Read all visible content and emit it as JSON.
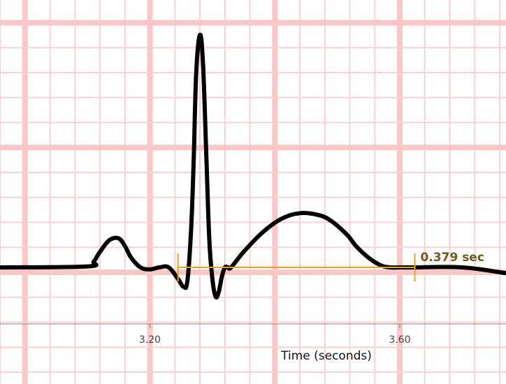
{
  "chart_data": {
    "type": "line",
    "xlabel": "Time (seconds)",
    "ticks": [
      {
        "value": 3.2,
        "label": "3.20"
      },
      {
        "value": 3.6,
        "label": "3.60"
      }
    ],
    "xlim": [
      2.96,
      3.77
    ],
    "ylim": [
      -0.25,
      1.72
    ],
    "grid": true,
    "series": [
      {
        "type": "ecg-trace",
        "x": [
          2.96,
          3.1,
          3.11,
          3.12,
          3.135,
          3.15,
          3.16,
          3.17,
          3.185,
          3.2,
          3.215,
          3.23,
          3.245,
          3.254,
          3.26,
          3.266,
          3.27,
          3.274,
          3.28,
          3.285,
          3.29,
          3.295,
          3.3,
          3.305,
          3.31,
          3.315,
          3.32,
          3.325,
          3.33,
          3.35,
          3.38,
          3.41,
          3.44,
          3.47,
          3.49,
          3.515,
          3.53,
          3.55,
          3.57,
          3.585,
          3.6,
          3.62,
          3.7,
          3.77
        ],
        "y": [
          0.0,
          0.005,
          0.03,
          0.08,
          0.14,
          0.15,
          0.11,
          0.05,
          0.0,
          -0.01,
          0.0,
          0.0,
          -0.06,
          -0.1,
          -0.07,
          0.2,
          0.55,
          1.0,
          1.2,
          1.05,
          0.6,
          0.15,
          -0.06,
          -0.15,
          -0.13,
          -0.05,
          0.0,
          0.0,
          0.0,
          0.08,
          0.18,
          0.25,
          0.28,
          0.27,
          0.24,
          0.17,
          0.11,
          0.05,
          0.01,
          0.0,
          0.0,
          0.0,
          0.0,
          -0.03
        ]
      }
    ],
    "measurement": {
      "x_start": 3.245,
      "x_end": 3.624,
      "y": 0.0,
      "label": "0.379 sec",
      "color": "#f0a020"
    },
    "grid_color": "#fbc6c6",
    "trace_color": "#000000"
  }
}
